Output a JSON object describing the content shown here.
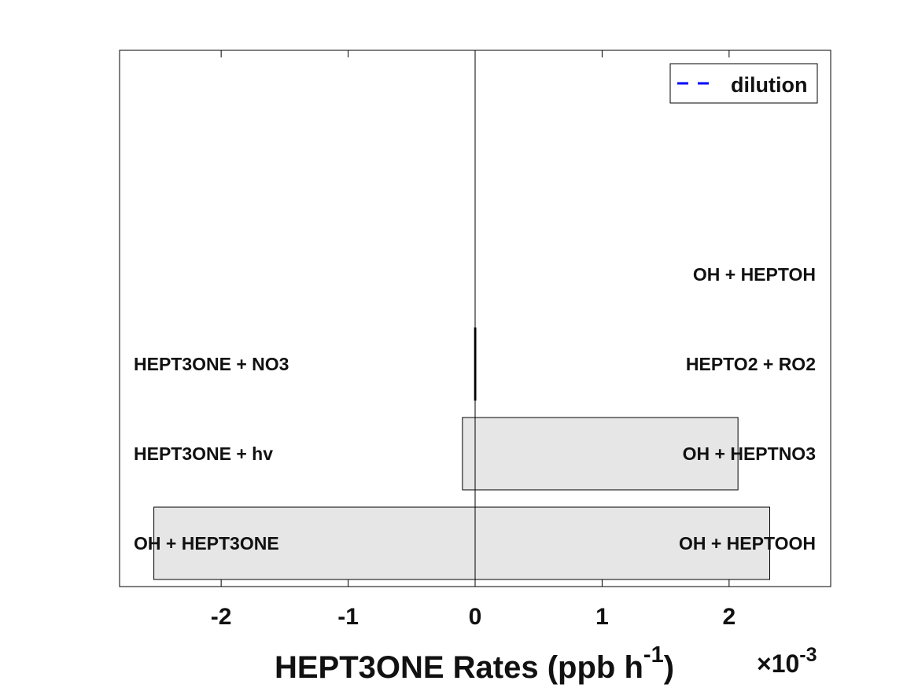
{
  "chart_data": {
    "type": "bar",
    "orientation": "horizontal",
    "xlabel_main": "HEPT3ONE Rates (ppb h",
    "xlabel_sup": "-1",
    "xlabel_close": ")",
    "exponent_base": "×10",
    "exponent_power": "-3",
    "xlim": [
      -2.8,
      2.8
    ],
    "x_ticks": [
      -2,
      -1,
      0,
      1,
      2
    ],
    "x_tick_labels": [
      "-2",
      "-1",
      "0",
      "1",
      "2"
    ],
    "legend": {
      "entries": [
        "dilution"
      ],
      "placement": "top-right",
      "color": "#0000ff",
      "style": "dashed"
    },
    "bar_fill": "#e6e6e6",
    "bar_edge": "#000000",
    "rows": [
      {
        "loss_label": "OH + HEPT3ONE",
        "loss_value": -2.53,
        "production_label": "OH + HEPTOOH",
        "production_value": 2.32
      },
      {
        "loss_label": "HEPT3ONE + hv",
        "loss_value": -0.1,
        "production_label": "OH + HEPTNO3",
        "production_value": 2.07
      },
      {
        "loss_label": "HEPT3ONE + NO3",
        "loss_value": -0.005,
        "production_label": "HEPTO2 + RO2",
        "production_value": 0.005
      },
      {
        "loss_label": "",
        "loss_value": 0,
        "production_label": "OH + HEPTOH",
        "production_value": 0
      }
    ]
  }
}
